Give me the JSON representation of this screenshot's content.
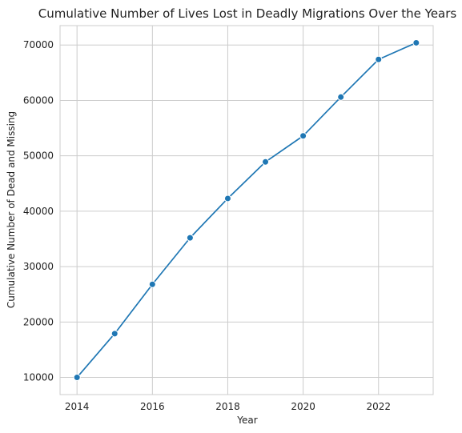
{
  "chart_data": {
    "type": "line",
    "title": "Cumulative Number of Lives Lost in Deadly Migrations Over the Years",
    "xlabel": "Year",
    "ylabel": "Cumulative Number of Dead and Missing",
    "x": [
      2014,
      2015,
      2016,
      2017,
      2018,
      2019,
      2020,
      2021,
      2022,
      2023
    ],
    "series": [
      {
        "values": [
          10000,
          17900,
          26800,
          35200,
          42300,
          48900,
          53600,
          60600,
          67400,
          70400
        ]
      }
    ],
    "xlim": [
      2013.55,
      2023.45
    ],
    "ylim": [
      6900,
      73500
    ],
    "xticks": [
      2014,
      2016,
      2018,
      2020,
      2022
    ],
    "yticks": [
      10000,
      20000,
      30000,
      40000,
      50000,
      60000,
      70000
    ],
    "grid": true,
    "legend": "none",
    "colors": {
      "line": "#1f77b4",
      "grid": "#cccccc",
      "spine": "#cccccc",
      "text": "#222222"
    }
  }
}
